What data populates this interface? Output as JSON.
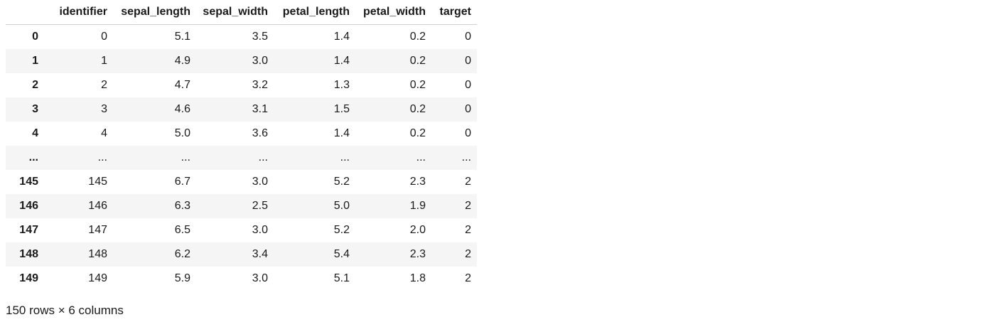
{
  "table": {
    "columns": [
      "identifier",
      "sepal_length",
      "sepal_width",
      "petal_length",
      "petal_width",
      "target"
    ],
    "rows": [
      {
        "index": "0",
        "cells": [
          "0",
          "5.1",
          "3.5",
          "1.4",
          "0.2",
          "0"
        ]
      },
      {
        "index": "1",
        "cells": [
          "1",
          "4.9",
          "3.0",
          "1.4",
          "0.2",
          "0"
        ]
      },
      {
        "index": "2",
        "cells": [
          "2",
          "4.7",
          "3.2",
          "1.3",
          "0.2",
          "0"
        ]
      },
      {
        "index": "3",
        "cells": [
          "3",
          "4.6",
          "3.1",
          "1.5",
          "0.2",
          "0"
        ]
      },
      {
        "index": "4",
        "cells": [
          "4",
          "5.0",
          "3.6",
          "1.4",
          "0.2",
          "0"
        ]
      },
      {
        "index": "...",
        "cells": [
          "...",
          "...",
          "...",
          "...",
          "...",
          "..."
        ]
      },
      {
        "index": "145",
        "cells": [
          "145",
          "6.7",
          "3.0",
          "5.2",
          "2.3",
          "2"
        ]
      },
      {
        "index": "146",
        "cells": [
          "146",
          "6.3",
          "2.5",
          "5.0",
          "1.9",
          "2"
        ]
      },
      {
        "index": "147",
        "cells": [
          "147",
          "6.5",
          "3.0",
          "5.2",
          "2.0",
          "2"
        ]
      },
      {
        "index": "148",
        "cells": [
          "148",
          "6.2",
          "3.4",
          "5.4",
          "2.3",
          "2"
        ]
      },
      {
        "index": "149",
        "cells": [
          "149",
          "5.9",
          "3.0",
          "5.1",
          "1.8",
          "2"
        ]
      }
    ]
  },
  "footer": {
    "summary": "150 rows × 6 columns"
  }
}
